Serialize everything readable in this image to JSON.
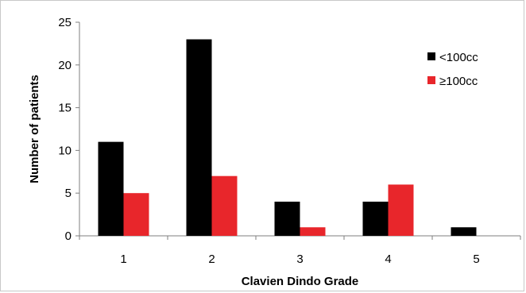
{
  "chart_data": {
    "type": "bar",
    "categories": [
      "1",
      "2",
      "3",
      "4",
      "5"
    ],
    "series": [
      {
        "name": "<100cc",
        "values": [
          11,
          23,
          4,
          4,
          1
        ],
        "color": "#000000"
      },
      {
        "name": "≥100cc",
        "values": [
          5,
          7,
          1,
          6,
          0
        ],
        "color": "#e8262b"
      }
    ],
    "title": "",
    "xlabel": "Clavien Dindo Grade",
    "ylabel": "Number of patients",
    "ylim": [
      0,
      25
    ],
    "yticks": [
      0,
      5,
      10,
      15,
      20,
      25
    ],
    "grid": false,
    "legend_position": "top-right"
  }
}
